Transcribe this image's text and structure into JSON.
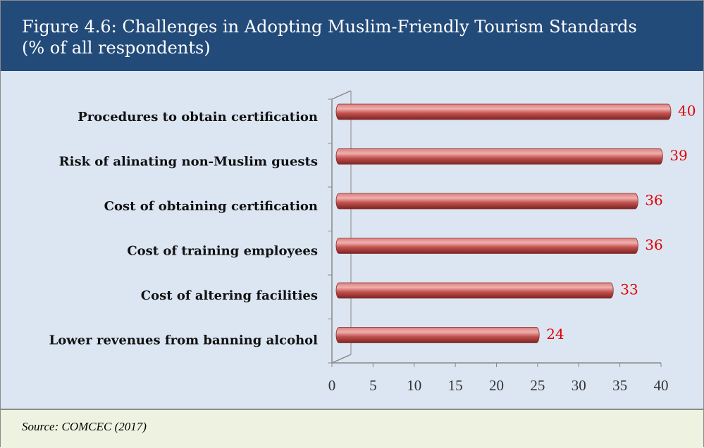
{
  "chart_data": {
    "type": "bar",
    "orientation": "horizontal",
    "title": "Figure 4.6: Challenges in Adopting Muslim-Friendly Tourism Standards",
    "subtitle": "(% of all respondents)",
    "categories": [
      "Procedures to obtain certification",
      "Risk of alinating non-Muslim guests",
      "Cost of obtaining certification",
      "Cost of training employees",
      "Cost of altering facilities",
      "Lower revenues from banning alcohol"
    ],
    "values": [
      40,
      39,
      36,
      36,
      33,
      24
    ],
    "color": "#c0504d",
    "xlim": [
      0,
      40
    ],
    "xticks": [
      0,
      5,
      10,
      15,
      20,
      25,
      30,
      35,
      40
    ],
    "source": "Source: COMCEC (2017)"
  }
}
